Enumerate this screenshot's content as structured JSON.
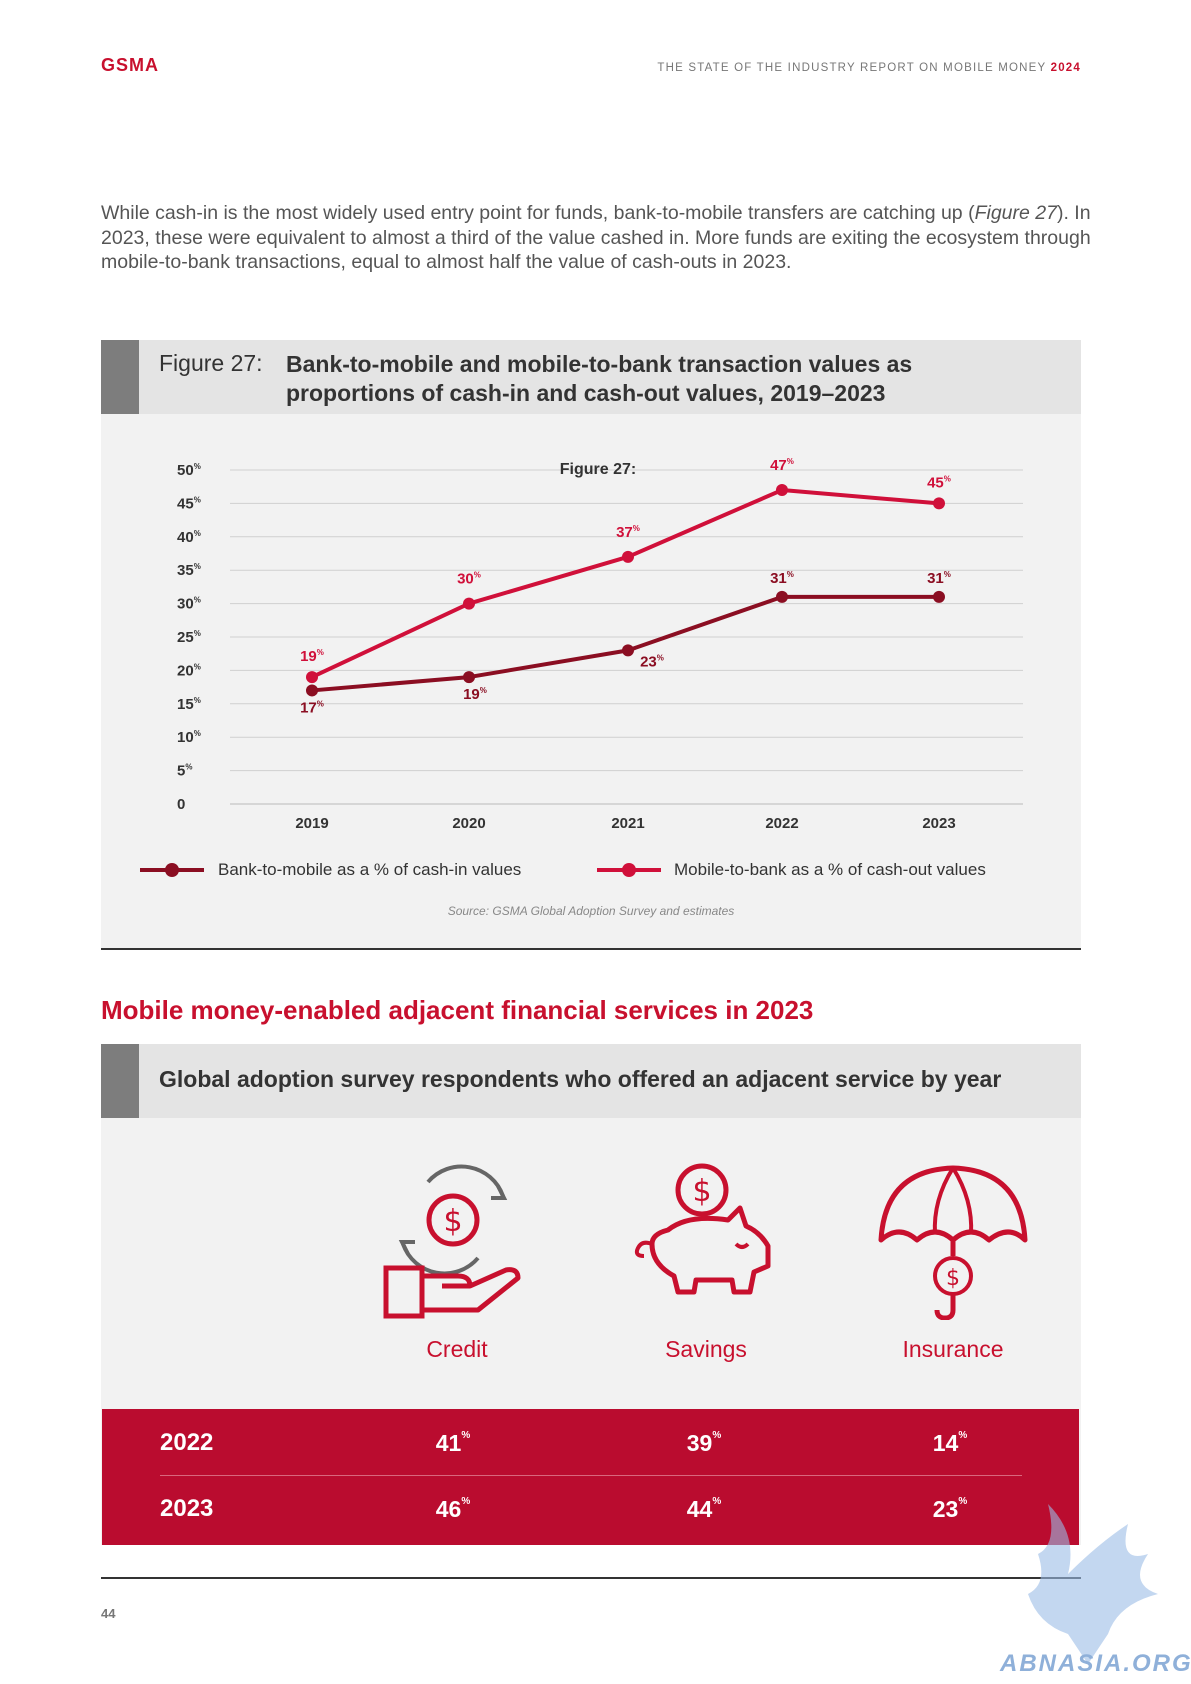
{
  "header": {
    "logo": "GSMA",
    "report_title": "THE STATE OF THE INDUSTRY REPORT ON MOBILE MONEY",
    "report_year": "2024"
  },
  "intro": {
    "part1": "While cash-in is the most widely used entry point for funds, bank-to-mobile transfers are catching up (",
    "figure_ref": "Figure 27",
    "part2": "). In 2023, these were equivalent to almost a third of the value cashed in. More funds are exiting the ecosystem through mobile-to-bank transactions, equal to almost half the value of cash-outs in 2023."
  },
  "figure": {
    "label": "Figure 27:",
    "title": "Bank-to-mobile and mobile-to-bank transaction values as proportions of cash-in and cash-out values, 2019–2023",
    "inner_label": "Figure 27:",
    "source": "Source: GSMA Global Adoption Survey and estimates"
  },
  "chart_data": {
    "type": "line",
    "title": "Bank-to-mobile and mobile-to-bank transaction values as proportions of cash-in and cash-out values, 2019–2023",
    "x": [
      "2019",
      "2020",
      "2021",
      "2022",
      "2023"
    ],
    "ylim": [
      0,
      50
    ],
    "yticks": [
      "0",
      "5",
      "10",
      "15",
      "20",
      "25",
      "30",
      "35",
      "40",
      "45",
      "50"
    ],
    "grid": true,
    "legend_position": "bottom",
    "series": [
      {
        "name": "Bank-to-mobile as a % of cash-in values",
        "color": "#8b0e22",
        "values": [
          17,
          19,
          23,
          31,
          31
        ]
      },
      {
        "name": "Mobile-to-bank as a % of cash-out values",
        "color": "#d0103a",
        "values": [
          19,
          30,
          37,
          47,
          45
        ]
      }
    ]
  },
  "section": {
    "heading": "Mobile money-enabled adjacent financial services in 2023"
  },
  "services": {
    "title": "Global adoption survey respondents who offered an adjacent service by year",
    "items": [
      {
        "label": "Credit",
        "icon": "credit-hand-coin-icon"
      },
      {
        "label": "Savings",
        "icon": "piggy-bank-icon"
      },
      {
        "label": "Insurance",
        "icon": "umbrella-coin-icon"
      }
    ],
    "rows": [
      {
        "year": "2022",
        "values": [
          "41",
          "39",
          "14"
        ]
      },
      {
        "year": "2023",
        "values": [
          "46",
          "44",
          "23"
        ]
      }
    ],
    "unit": "%"
  },
  "footer": {
    "page_number": "44",
    "watermark": "ABNASIA.ORG"
  },
  "colors": {
    "brand": "#c8102e",
    "dark_series": "#8b0e22",
    "table_bg": "#ba0c2f",
    "panel_bg": "#f2f2f2"
  }
}
